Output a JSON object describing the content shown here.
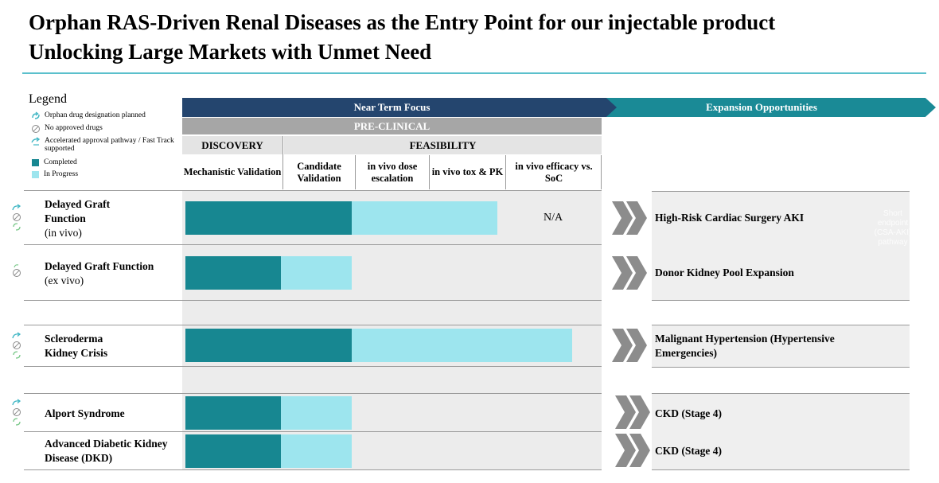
{
  "title": {
    "line1": "Orphan RAS-Driven Renal Diseases as the Entry Point for our injectable product",
    "line2": "Unlocking Large Markets with Unmet Need"
  },
  "legend": {
    "title": "Legend",
    "items": [
      {
        "label": "Orphan drug designation planned",
        "icon": "orphan-drug-icon"
      },
      {
        "label": "No approved drugs",
        "icon": "no-approved-drugs-icon"
      },
      {
        "label": "Accelerated approval pathway / Fast Track supported",
        "icon": "accelerated-approval-icon"
      },
      {
        "label": "Completed",
        "color": "#178791"
      },
      {
        "label": "In Progress",
        "color": "#9de5ee"
      }
    ]
  },
  "headers": {
    "near_term": "Near Term Focus",
    "expansion": "Expansion Opportunities",
    "preclinical": "PRE-CLINICAL",
    "discovery": "DISCOVERY",
    "feasibility": "FEASIBILITY",
    "columns": [
      "Mechanistic Validation",
      "Candidate Validation",
      "in vivo dose escalation",
      "in vivo tox & PK",
      "in vivo efficacy vs. SoC"
    ]
  },
  "rows": [
    {
      "name": "Delayed Graft Function",
      "sub": "(in vivo)",
      "completed_pct": 0.4,
      "in_progress_pct": 0.35,
      "status": "N/A",
      "expansion": "High-Risk Cardiac Surgery AKI"
    },
    {
      "name": "Delayed Graft Function",
      "sub": "(ex vivo)",
      "completed_pct": 0.23,
      "in_progress_pct": 0.17,
      "expansion": "Donor Kidney Pool Expansion"
    },
    {
      "name": "Scleroderma Kidney Crisis",
      "completed_pct": 0.4,
      "in_progress_pct": 0.53,
      "expansion": "Malignant Hypertension (Hypertensive Emergencies)"
    },
    {
      "name": "Alport Syndrome",
      "completed_pct": 0.23,
      "in_progress_pct": 0.17,
      "expansion": "CKD (Stage 4)"
    },
    {
      "name": "Advanced Diabetic Kidney Disease (DKD)",
      "completed_pct": 0.23,
      "in_progress_pct": 0.17,
      "expansion": "CKD (Stage 4)"
    }
  ],
  "colors": {
    "navy": "#24456e",
    "teal": "#1a8a96",
    "completed": "#178791",
    "in_progress": "#9de5ee",
    "title_rule": "#5bc0cc"
  }
}
